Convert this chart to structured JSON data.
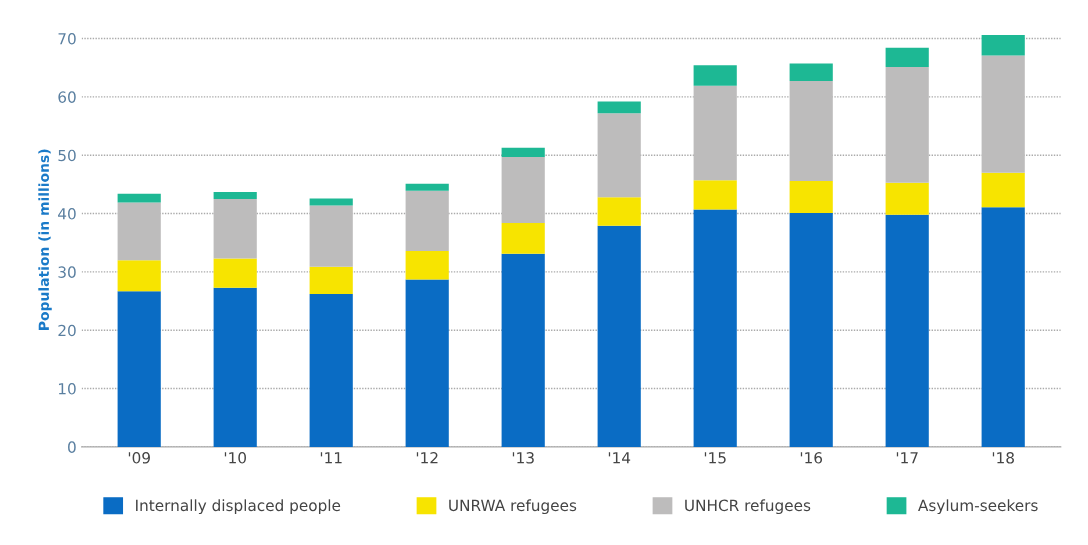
{
  "chart_data": {
    "type": "bar",
    "stacked": true,
    "ylabel": "Population (in millions)",
    "categories": [
      "'09",
      "'10",
      "'11",
      "'12",
      "'13",
      "'14",
      "'15",
      "'16",
      "'17",
      "'18"
    ],
    "series": [
      {
        "name": "Internally displaced people",
        "color": "#0a6cc4",
        "values": [
          26.7,
          27.3,
          26.2,
          28.7,
          33.1,
          37.9,
          40.7,
          40.1,
          39.8,
          41.1
        ]
      },
      {
        "name": "UNRWA refugees",
        "color": "#f7e400",
        "values": [
          5.3,
          5.0,
          4.7,
          4.9,
          5.3,
          4.9,
          5.0,
          5.5,
          5.5,
          5.9
        ]
      },
      {
        "name": "UNHCR refugees",
        "color": "#bdbcbc",
        "values": [
          9.9,
          10.2,
          10.5,
          10.3,
          11.3,
          14.4,
          16.2,
          17.1,
          19.8,
          20.1
        ]
      },
      {
        "name": "Asylum-seekers",
        "color": "#1db894",
        "values": [
          1.5,
          1.2,
          1.2,
          1.2,
          1.6,
          2.0,
          3.5,
          3.0,
          3.3,
          3.5
        ]
      }
    ],
    "ylim": [
      0,
      71
    ],
    "yticks": [
      0,
      10,
      20,
      30,
      40,
      50,
      60,
      70
    ],
    "grid": "y",
    "legend": "bottom"
  }
}
